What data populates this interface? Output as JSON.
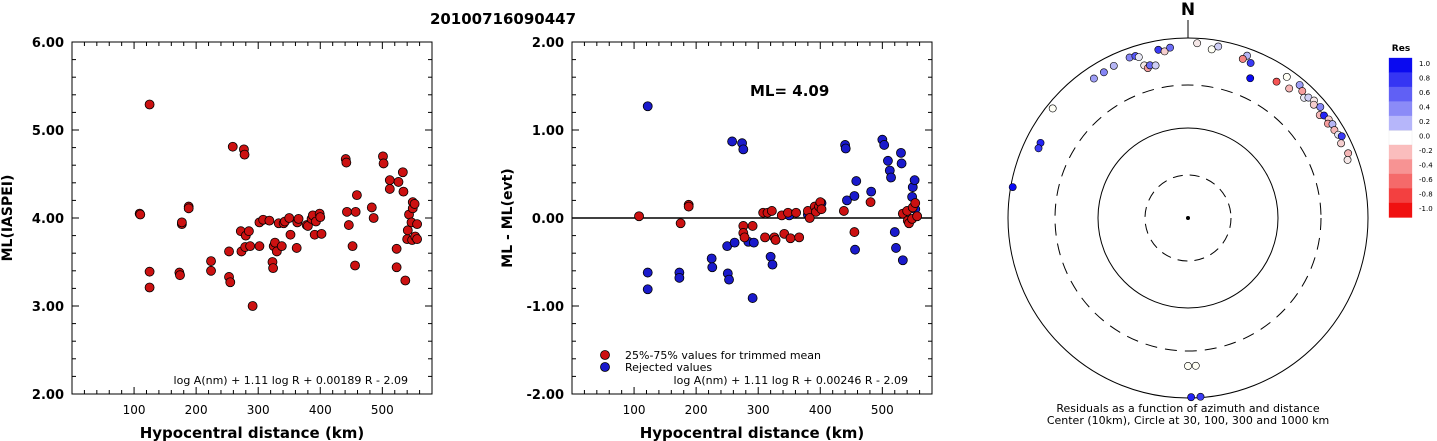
{
  "title": "20100716090447",
  "chart_data": [
    {
      "type": "scatter",
      "id": "left",
      "xlabel": "Hypocentral distance (km)",
      "ylabel": "ML(IASPEI)",
      "xlim": [
        0,
        580
      ],
      "ylim": [
        2.0,
        6.0
      ],
      "xticks": [
        100,
        200,
        300,
        400,
        500
      ],
      "xtick_labels": [
        "100",
        "200",
        "300",
        "400",
        "500"
      ],
      "yticks": [
        2,
        3,
        4,
        5,
        6
      ],
      "ytick_labels": [
        "2.00",
        "3.00",
        "4.00",
        "5.00",
        "6.00"
      ],
      "formula": "log A(nm) + 1.11 log R + 0.00189 R - 2.09",
      "points": [
        [
          109,
          4.05
        ],
        [
          110,
          4.04
        ],
        [
          125,
          5.29
        ],
        [
          125,
          3.39
        ],
        [
          125,
          3.21
        ],
        [
          173,
          3.38
        ],
        [
          174,
          3.35
        ],
        [
          177,
          3.93
        ],
        [
          177,
          3.95
        ],
        [
          188,
          4.13
        ],
        [
          188,
          4.11
        ],
        [
          224,
          3.51
        ],
        [
          224,
          3.4
        ],
        [
          253,
          3.62
        ],
        [
          253,
          3.33
        ],
        [
          255,
          3.27
        ],
        [
          259,
          4.81
        ],
        [
          272,
          3.85
        ],
        [
          273,
          3.62
        ],
        [
          277,
          4.78
        ],
        [
          278,
          4.72
        ],
        [
          279,
          3.67
        ],
        [
          280,
          3.8
        ],
        [
          285,
          3.85
        ],
        [
          287,
          3.68
        ],
        [
          291,
          3.0
        ],
        [
          302,
          3.68
        ],
        [
          302,
          3.95
        ],
        [
          308,
          3.98
        ],
        [
          318,
          3.97
        ],
        [
          323,
          3.5
        ],
        [
          324,
          3.43
        ],
        [
          325,
          3.68
        ],
        [
          327,
          3.72
        ],
        [
          330,
          3.62
        ],
        [
          333,
          3.94
        ],
        [
          338,
          3.68
        ],
        [
          341,
          3.94
        ],
        [
          343,
          3.96
        ],
        [
          350,
          4.0
        ],
        [
          352,
          3.81
        ],
        [
          362,
          3.66
        ],
        [
          363,
          3.95
        ],
        [
          365,
          3.99
        ],
        [
          378,
          3.92
        ],
        [
          380,
          3.91
        ],
        [
          386,
          3.99
        ],
        [
          388,
          4.03
        ],
        [
          391,
          3.81
        ],
        [
          393,
          3.96
        ],
        [
          399,
          4.05
        ],
        [
          400,
          4.01
        ],
        [
          402,
          3.82
        ],
        [
          441,
          4.67
        ],
        [
          442,
          4.63
        ],
        [
          443,
          4.07
        ],
        [
          446,
          3.92
        ],
        [
          452,
          3.68
        ],
        [
          456,
          3.46
        ],
        [
          457,
          4.07
        ],
        [
          459,
          4.26
        ],
        [
          483,
          4.12
        ],
        [
          486,
          4.0
        ],
        [
          501,
          4.7
        ],
        [
          502,
          4.62
        ],
        [
          512,
          4.33
        ],
        [
          512,
          4.43
        ],
        [
          523,
          3.44
        ],
        [
          523,
          3.65
        ],
        [
          526,
          4.41
        ],
        [
          533,
          4.52
        ],
        [
          534,
          4.3
        ],
        [
          537,
          3.29
        ],
        [
          540,
          3.76
        ],
        [
          541,
          3.86
        ],
        [
          543,
          4.04
        ],
        [
          547,
          3.95
        ],
        [
          548,
          3.75
        ],
        [
          549,
          4.18
        ],
        [
          549,
          4.11
        ],
        [
          552,
          4.16
        ],
        [
          553,
          3.79
        ],
        [
          556,
          3.93
        ],
        [
          556,
          3.76
        ]
      ]
    },
    {
      "type": "scatter",
      "id": "middle",
      "xlabel": "Hypocentral distance (km)",
      "ylabel": "ML - ML(evt)",
      "xlim": [
        0,
        580
      ],
      "ylim": [
        -2.0,
        2.0
      ],
      "xticks": [
        100,
        200,
        300,
        400,
        500
      ],
      "xtick_labels": [
        "100",
        "200",
        "300",
        "400",
        "500"
      ],
      "yticks": [
        -2,
        -1,
        0,
        1,
        2
      ],
      "ytick_labels": [
        "-2.00",
        "-1.00",
        "0.00",
        "1.00",
        "2.00"
      ],
      "annotation": "ML= 4.09",
      "legend": [
        {
          "label": "25%-75% values for trimmed mean",
          "color": "#cc1111"
        },
        {
          "label": "Rejected values",
          "color": "#1a1acc"
        }
      ],
      "formula": "log A(nm) + 1.11 log R + 0.00246 R - 2.09",
      "red": [
        [
          108,
          0.02
        ],
        [
          175,
          -0.06
        ],
        [
          188,
          0.15
        ],
        [
          188,
          0.13
        ],
        [
          276,
          -0.09
        ],
        [
          276,
          -0.17
        ],
        [
          278,
          -0.22
        ],
        [
          291,
          -0.09
        ],
        [
          308,
          0.06
        ],
        [
          311,
          -0.22
        ],
        [
          315,
          0.06
        ],
        [
          322,
          0.08
        ],
        [
          326,
          -0.22
        ],
        [
          328,
          -0.25
        ],
        [
          338,
          0.03
        ],
        [
          342,
          -0.18
        ],
        [
          348,
          0.06
        ],
        [
          352,
          -0.23
        ],
        [
          361,
          0.06
        ],
        [
          366,
          -0.22
        ],
        [
          380,
          0.08
        ],
        [
          383,
          0.0
        ],
        [
          391,
          0.13
        ],
        [
          393,
          0.07
        ],
        [
          398,
          0.13
        ],
        [
          400,
          0.18
        ],
        [
          402,
          0.1
        ],
        [
          438,
          0.08
        ],
        [
          455,
          -0.16
        ],
        [
          481,
          0.18
        ],
        [
          533,
          0.05
        ],
        [
          540,
          0.08
        ],
        [
          541,
          -0.03
        ],
        [
          543,
          -0.06
        ],
        [
          548,
          -0.01
        ],
        [
          549,
          0.12
        ],
        [
          553,
          0.17
        ],
        [
          556,
          0.02
        ]
      ],
      "blue": [
        [
          122,
          1.27
        ],
        [
          122,
          -0.62
        ],
        [
          122,
          -0.81
        ],
        [
          173,
          -0.62
        ],
        [
          173,
          -0.68
        ],
        [
          225,
          -0.46
        ],
        [
          226,
          -0.56
        ],
        [
          250,
          -0.32
        ],
        [
          251,
          -0.63
        ],
        [
          253,
          -0.7
        ],
        [
          258,
          0.87
        ],
        [
          262,
          -0.28
        ],
        [
          274,
          0.85
        ],
        [
          276,
          0.78
        ],
        [
          284,
          -0.27
        ],
        [
          291,
          -0.91
        ],
        [
          293,
          -0.28
        ],
        [
          320,
          -0.44
        ],
        [
          323,
          -0.53
        ],
        [
          350,
          0.03
        ],
        [
          380,
          0.04
        ],
        [
          399,
          0.12
        ],
        [
          402,
          0.17
        ],
        [
          440,
          0.83
        ],
        [
          441,
          0.79
        ],
        [
          443,
          0.2
        ],
        [
          455,
          0.25
        ],
        [
          456,
          -0.36
        ],
        [
          458,
          0.42
        ],
        [
          482,
          0.3
        ],
        [
          500,
          0.89
        ],
        [
          503,
          0.83
        ],
        [
          509,
          0.65
        ],
        [
          512,
          0.54
        ],
        [
          514,
          0.46
        ],
        [
          520,
          -0.16
        ],
        [
          522,
          -0.34
        ],
        [
          530,
          0.74
        ],
        [
          531,
          0.62
        ],
        [
          533,
          -0.48
        ],
        [
          548,
          0.24
        ],
        [
          549,
          0.35
        ],
        [
          552,
          0.43
        ],
        [
          553,
          0.1
        ]
      ]
    },
    {
      "type": "scatter",
      "id": "polar",
      "north_label": "N",
      "caption_lines": [
        "Residuals as a function of azimuth and distance",
        "Center (10km), Circle at 30, 100, 300 and 1000 km"
      ],
      "colorbar_title": "Res",
      "colorbar_labels": [
        "1.0",
        "0.8",
        "0.6",
        "0.4",
        "0.2",
        "0.0",
        "-0.2",
        "-0.4",
        "-0.6",
        "-0.8",
        "-1.0"
      ],
      "colorbar_colors": [
        "#0a0af0",
        "#3535f3",
        "#6060f5",
        "#8b8bf7",
        "#b6b6fa",
        "#ffffff",
        "#fabdbd",
        "#f79393",
        "#f56a6a",
        "#f34040",
        "#f01010"
      ],
      "stations": [
        {
          "az": -34,
          "dist": 740,
          "res": 0.4
        },
        {
          "az": -30,
          "dist": 740,
          "res": 0.5
        },
        {
          "az": -26,
          "dist": 760,
          "res": 0.3
        },
        {
          "az": -20,
          "dist": 790,
          "res": 0.5
        },
        {
          "az": -18,
          "dist": 780,
          "res": 0.7
        },
        {
          "az": -17,
          "dist": 740,
          "res": 0.1
        },
        {
          "az": -16,
          "dist": 580,
          "res": -0.1
        },
        {
          "az": -15,
          "dist": 530,
          "res": -0.4
        },
        {
          "az": -14,
          "dist": 560,
          "res": 0.6
        },
        {
          "az": -12,
          "dist": 540,
          "res": 0.2
        },
        {
          "az": -10,
          "dist": 790,
          "res": 0.8
        },
        {
          "az": -8,
          "dist": 740,
          "res": -0.2
        },
        {
          "az": -6,
          "dist": 800,
          "res": 0.6
        },
        {
          "az": 3,
          "dist": 880,
          "res": -0.1
        },
        {
          "az": 8,
          "dist": 780,
          "res": 0.0
        },
        {
          "az": 10,
          "dist": 860,
          "res": 0.2
        },
        {
          "az": 20,
          "dist": 830,
          "res": 0.3
        },
        {
          "az": 19,
          "dist": 740,
          "res": -0.5
        },
        {
          "az": 22,
          "dist": 720,
          "res": 0.8
        },
        {
          "az": 24,
          "dist": 500,
          "res": 1.0
        },
        {
          "az": 33,
          "dist": 640,
          "res": -0.7
        },
        {
          "az": 35,
          "dist": 820,
          "res": 0.0
        },
        {
          "az": 38,
          "dist": 670,
          "res": -0.3
        },
        {
          "az": 40,
          "dist": 850,
          "res": 0.4
        },
        {
          "az": 42,
          "dist": 790,
          "res": -0.4
        },
        {
          "az": 44,
          "dist": 720,
          "res": 0.1
        },
        {
          "az": 45,
          "dist": 780,
          "res": 0.2
        },
        {
          "az": 47,
          "dist": 820,
          "res": -0.1
        },
        {
          "az": 48,
          "dist": 760,
          "res": -0.2
        },
        {
          "az": 50,
          "dist": 830,
          "res": 0.5
        },
        {
          "az": 52,
          "dist": 720,
          "res": -0.3
        },
        {
          "az": 53,
          "dist": 780,
          "res": 0.9
        },
        {
          "az": 55,
          "dist": 810,
          "res": -0.2
        },
        {
          "az": 56,
          "dist": 750,
          "res": -0.4
        },
        {
          "az": 57,
          "dist": 820,
          "res": 0.3
        },
        {
          "az": 59,
          "dist": 790,
          "res": -0.3
        },
        {
          "az": 61,
          "dist": 810,
          "res": 0.1
        },
        {
          "az": 62,
          "dist": 860,
          "res": 0.8
        },
        {
          "az": 64,
          "dist": 780,
          "res": -0.2
        },
        {
          "az": 68,
          "dist": 830,
          "res": -0.3
        },
        {
          "az": 70,
          "dist": 770,
          "res": -0.1
        },
        {
          "az": -51,
          "dist": 860,
          "res": 0.0
        },
        {
          "az": -63,
          "dist": 690,
          "res": 0.9
        },
        {
          "az": -65,
          "dist": 680,
          "res": 0.8
        },
        {
          "az": -80,
          "dist": 950,
          "res": 1.0
        },
        {
          "az": 177,
          "dist": 440,
          "res": 0.0
        },
        {
          "az": 180,
          "dist": 440,
          "res": 0.0
        },
        {
          "az": 176,
          "dist": 980,
          "res": 0.8
        },
        {
          "az": 179,
          "dist": 980,
          "res": 0.9
        }
      ]
    }
  ]
}
